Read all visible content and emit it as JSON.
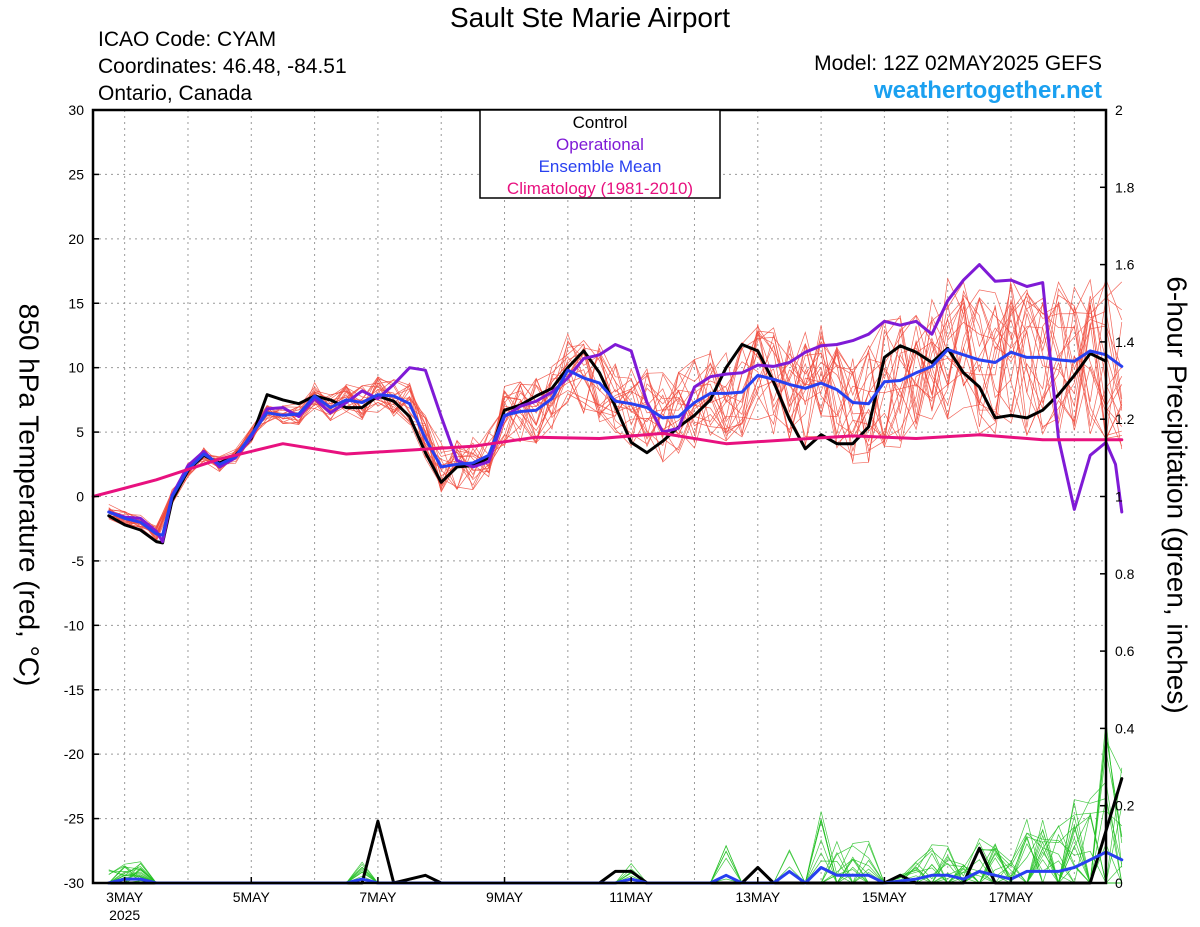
{
  "header": {
    "title": "Sault Ste Marie Airport",
    "icao": "ICAO Code: CYAM",
    "coordinates": "Coordinates: 46.48, -84.51",
    "region": "Ontario, Canada",
    "model": "Model: 12Z 02MAY2025 GEFS",
    "website": "weathertogether.net"
  },
  "chart_data": {
    "type": "line",
    "left_axis_label": "850 hPa Temperature (red, °C)",
    "right_axis_label": "6-hour Precipitation (green, inches)",
    "ylim_left": [
      -30,
      30
    ],
    "ylim_right": [
      0,
      2
    ],
    "left_ticks": [
      "30",
      "25",
      "20",
      "15",
      "10",
      "5",
      "0",
      "-5",
      "-10",
      "-15",
      "-20",
      "-25",
      "-30"
    ],
    "right_ticks": [
      "2",
      "1.8",
      "1.6",
      "1.4",
      "1.2",
      "1",
      "0.8",
      "0.6",
      "0.4",
      "0.2",
      "0"
    ],
    "x_ticks": [
      {
        "day": 3,
        "label": "3MAY",
        "sublabel": "2025"
      },
      {
        "day": 5,
        "label": "5MAY",
        "sublabel": ""
      },
      {
        "day": 7,
        "label": "7MAY",
        "sublabel": ""
      },
      {
        "day": 9,
        "label": "9MAY",
        "sublabel": ""
      },
      {
        "day": 11,
        "label": "11MAY",
        "sublabel": ""
      },
      {
        "day": 13,
        "label": "13MAY",
        "sublabel": ""
      },
      {
        "day": 15,
        "label": "15MAY",
        "sublabel": ""
      },
      {
        "day": 17,
        "label": "17MAY",
        "sublabel": ""
      }
    ],
    "xlim_days": [
      2.5,
      18.5
    ],
    "legend": {
      "placement": "top-center",
      "entries": [
        {
          "label": "Control",
          "color": "#000000"
        },
        {
          "label": "Operational",
          "color": "#7f1ad6"
        },
        {
          "label": "Ensemble Mean",
          "color": "#2840f0"
        },
        {
          "label": "Climatology (1981-2010)",
          "color": "#e8117f"
        }
      ]
    },
    "colors": {
      "members_temp": "#f04a3c",
      "members_precip": "#22c022",
      "control": "#000000",
      "operational": "#7f1ad6",
      "mean": "#2840f0",
      "climatology": "#e8117f"
    },
    "series": [
      {
        "name": "Control",
        "quantity": "temperature",
        "points": [
          [
            2.75,
            -1.5
          ],
          [
            3.0,
            -2.2
          ],
          [
            3.25,
            -2.6
          ],
          [
            3.5,
            -3.5
          ],
          [
            3.6,
            -3.6
          ],
          [
            3.75,
            -0.3
          ],
          [
            4.0,
            2.0
          ],
          [
            4.25,
            3.2
          ],
          [
            4.5,
            2.6
          ],
          [
            4.75,
            3.2
          ],
          [
            5.0,
            4.5
          ],
          [
            5.25,
            7.9
          ],
          [
            5.5,
            7.5
          ],
          [
            5.75,
            7.2
          ],
          [
            6.0,
            7.8
          ],
          [
            6.25,
            7.5
          ],
          [
            6.5,
            6.9
          ],
          [
            6.75,
            6.9
          ],
          [
            7.0,
            7.8
          ],
          [
            7.25,
            7.4
          ],
          [
            7.5,
            6.2
          ],
          [
            7.75,
            3.4
          ],
          [
            8.0,
            1.1
          ],
          [
            8.25,
            2.3
          ],
          [
            8.5,
            2.4
          ],
          [
            8.75,
            3.0
          ],
          [
            9.0,
            6.7
          ],
          [
            9.25,
            7.1
          ],
          [
            9.5,
            7.8
          ],
          [
            9.75,
            8.4
          ],
          [
            10.0,
            10.0
          ],
          [
            10.25,
            11.3
          ],
          [
            10.5,
            9.6
          ],
          [
            10.75,
            7.0
          ],
          [
            11.0,
            4.2
          ],
          [
            11.25,
            3.4
          ],
          [
            11.5,
            4.3
          ],
          [
            11.75,
            5.4
          ],
          [
            12.0,
            6.3
          ],
          [
            12.25,
            7.5
          ],
          [
            12.5,
            10.0
          ],
          [
            12.75,
            11.8
          ],
          [
            13.0,
            11.3
          ],
          [
            13.25,
            8.9
          ],
          [
            13.5,
            6.0
          ],
          [
            13.75,
            3.7
          ],
          [
            14.0,
            4.8
          ],
          [
            14.25,
            4.1
          ],
          [
            14.5,
            4.1
          ],
          [
            14.75,
            5.4
          ],
          [
            15.0,
            10.8
          ],
          [
            15.25,
            11.7
          ],
          [
            15.5,
            11.2
          ],
          [
            15.75,
            10.4
          ],
          [
            16.0,
            11.5
          ],
          [
            16.25,
            9.6
          ],
          [
            16.5,
            8.5
          ],
          [
            16.75,
            6.1
          ],
          [
            17.0,
            6.3
          ],
          [
            17.25,
            6.1
          ],
          [
            17.5,
            6.7
          ],
          [
            17.75,
            7.9
          ],
          [
            18.0,
            9.4
          ],
          [
            18.25,
            11.1
          ],
          [
            18.5,
            10.5
          ]
        ]
      },
      {
        "name": "Operational",
        "quantity": "temperature",
        "points": [
          [
            2.75,
            -1.2
          ],
          [
            3.0,
            -1.6
          ],
          [
            3.25,
            -1.7
          ],
          [
            3.5,
            -2.7
          ],
          [
            3.6,
            -3.5
          ],
          [
            3.75,
            0.1
          ],
          [
            4.0,
            2.4
          ],
          [
            4.25,
            3.5
          ],
          [
            4.5,
            2.3
          ],
          [
            4.75,
            3.0
          ],
          [
            5.0,
            4.6
          ],
          [
            5.25,
            6.8
          ],
          [
            5.5,
            6.9
          ],
          [
            5.75,
            6.2
          ],
          [
            6.0,
            7.6
          ],
          [
            6.25,
            6.5
          ],
          [
            6.5,
            7.3
          ],
          [
            6.75,
            8.2
          ],
          [
            7.0,
            7.6
          ],
          [
            7.25,
            8.7
          ],
          [
            7.5,
            10.0
          ],
          [
            7.75,
            9.8
          ],
          [
            8.0,
            6.2
          ],
          [
            8.25,
            2.8
          ],
          [
            8.5,
            2.3
          ],
          [
            8.75,
            2.7
          ],
          [
            9.0,
            6.2
          ],
          [
            9.25,
            7.0
          ],
          [
            9.5,
            7.4
          ],
          [
            9.75,
            8.1
          ],
          [
            10.0,
            9.2
          ],
          [
            10.25,
            10.7
          ],
          [
            10.5,
            11.0
          ],
          [
            10.75,
            11.8
          ],
          [
            11.0,
            11.3
          ],
          [
            11.25,
            7.3
          ],
          [
            11.5,
            5.0
          ],
          [
            11.75,
            5.3
          ],
          [
            12.0,
            8.5
          ],
          [
            12.25,
            9.3
          ],
          [
            12.5,
            9.5
          ],
          [
            12.75,
            9.6
          ],
          [
            13.0,
            10.2
          ],
          [
            13.25,
            10.1
          ],
          [
            13.5,
            10.4
          ],
          [
            13.75,
            11.2
          ],
          [
            14.0,
            11.7
          ],
          [
            14.25,
            11.8
          ],
          [
            14.5,
            12.1
          ],
          [
            14.75,
            12.6
          ],
          [
            15.0,
            13.6
          ],
          [
            15.25,
            13.3
          ],
          [
            15.5,
            13.6
          ],
          [
            15.75,
            12.6
          ],
          [
            16.0,
            15.2
          ],
          [
            16.25,
            16.8
          ],
          [
            16.5,
            18.0
          ],
          [
            16.75,
            16.7
          ],
          [
            17.0,
            16.8
          ],
          [
            17.25,
            16.3
          ],
          [
            17.5,
            16.6
          ],
          [
            17.75,
            4.5
          ],
          [
            18.0,
            -1.0
          ],
          [
            18.25,
            3.2
          ],
          [
            18.5,
            4.2
          ],
          [
            18.65,
            2.5
          ],
          [
            18.75,
            -1.2
          ]
        ]
      },
      {
        "name": "Ensemble Mean",
        "quantity": "temperature",
        "points": [
          [
            2.75,
            -1.2
          ],
          [
            3.0,
            -1.7
          ],
          [
            3.25,
            -2.0
          ],
          [
            3.5,
            -2.9
          ],
          [
            3.6,
            -3.0
          ],
          [
            3.75,
            0.0
          ],
          [
            4.0,
            2.1
          ],
          [
            4.25,
            3.3
          ],
          [
            4.5,
            2.5
          ],
          [
            4.75,
            3.1
          ],
          [
            5.0,
            4.8
          ],
          [
            5.25,
            6.5
          ],
          [
            5.5,
            6.3
          ],
          [
            5.75,
            6.4
          ],
          [
            6.0,
            7.8
          ],
          [
            6.25,
            6.9
          ],
          [
            6.5,
            7.5
          ],
          [
            6.75,
            7.3
          ],
          [
            7.0,
            7.9
          ],
          [
            7.25,
            7.8
          ],
          [
            7.5,
            7.2
          ],
          [
            7.75,
            4.5
          ],
          [
            8.0,
            2.3
          ],
          [
            8.25,
            2.5
          ],
          [
            8.5,
            2.6
          ],
          [
            8.75,
            3.2
          ],
          [
            9.0,
            6.3
          ],
          [
            9.25,
            6.6
          ],
          [
            9.5,
            6.7
          ],
          [
            9.75,
            7.6
          ],
          [
            10.0,
            9.8
          ],
          [
            10.25,
            9.2
          ],
          [
            10.5,
            8.8
          ],
          [
            10.75,
            7.4
          ],
          [
            11.0,
            7.2
          ],
          [
            11.25,
            6.9
          ],
          [
            11.5,
            6.1
          ],
          [
            11.75,
            6.2
          ],
          [
            12.0,
            7.3
          ],
          [
            12.25,
            8.0
          ],
          [
            12.5,
            8.0
          ],
          [
            12.75,
            8.1
          ],
          [
            13.0,
            9.4
          ],
          [
            13.25,
            9.1
          ],
          [
            13.5,
            8.7
          ],
          [
            13.75,
            8.4
          ],
          [
            14.0,
            8.8
          ],
          [
            14.25,
            8.3
          ],
          [
            14.5,
            7.3
          ],
          [
            14.75,
            7.2
          ],
          [
            15.0,
            8.9
          ],
          [
            15.25,
            9.0
          ],
          [
            15.5,
            9.6
          ],
          [
            15.75,
            10.1
          ],
          [
            16.0,
            11.4
          ],
          [
            16.25,
            11.0
          ],
          [
            16.5,
            10.6
          ],
          [
            16.75,
            10.4
          ],
          [
            17.0,
            11.2
          ],
          [
            17.25,
            10.8
          ],
          [
            17.5,
            10.8
          ],
          [
            17.75,
            10.6
          ],
          [
            18.0,
            10.5
          ],
          [
            18.25,
            11.3
          ],
          [
            18.5,
            11.0
          ],
          [
            18.75,
            10.1
          ]
        ]
      },
      {
        "name": "Climatology (1981-2010)",
        "quantity": "temperature",
        "points": [
          [
            2.5,
            0.0
          ],
          [
            3.5,
            1.3
          ],
          [
            4.5,
            2.9
          ],
          [
            5.5,
            4.1
          ],
          [
            6.5,
            3.3
          ],
          [
            7.5,
            3.6
          ],
          [
            8.5,
            3.9
          ],
          [
            9.5,
            4.6
          ],
          [
            10.5,
            4.5
          ],
          [
            11.5,
            4.9
          ],
          [
            12.5,
            4.1
          ],
          [
            13.5,
            4.4
          ],
          [
            14.5,
            4.7
          ],
          [
            15.5,
            4.5
          ],
          [
            16.5,
            4.8
          ],
          [
            17.5,
            4.4
          ],
          [
            18.75,
            4.4
          ]
        ]
      },
      {
        "name": "Control",
        "quantity": "precipitation",
        "points": [
          [
            2.75,
            0.0
          ],
          [
            6.75,
            0.0
          ],
          [
            7.0,
            0.16
          ],
          [
            7.25,
            0.0
          ],
          [
            7.75,
            0.02
          ],
          [
            8.0,
            0.0
          ],
          [
            10.5,
            0.0
          ],
          [
            10.75,
            0.03
          ],
          [
            11.0,
            0.03
          ],
          [
            11.25,
            0.0
          ],
          [
            12.75,
            0.0
          ],
          [
            13.0,
            0.04
          ],
          [
            13.25,
            0.0
          ],
          [
            15.0,
            0.0
          ],
          [
            15.25,
            0.02
          ],
          [
            15.5,
            0.0
          ],
          [
            16.25,
            0.0
          ],
          [
            16.5,
            0.09
          ],
          [
            16.75,
            0.0
          ],
          [
            18.25,
            0.0
          ],
          [
            18.75,
            0.27
          ]
        ]
      },
      {
        "name": "Ensemble Mean",
        "quantity": "precipitation",
        "points": [
          [
            2.75,
            0.0
          ],
          [
            3.0,
            0.01
          ],
          [
            3.25,
            0.01
          ],
          [
            3.5,
            0.0
          ],
          [
            6.5,
            0.0
          ],
          [
            6.75,
            0.01
          ],
          [
            7.0,
            0.0
          ],
          [
            10.75,
            0.0
          ],
          [
            11.0,
            0.01
          ],
          [
            11.25,
            0.0
          ],
          [
            12.25,
            0.0
          ],
          [
            12.5,
            0.02
          ],
          [
            12.75,
            0.0
          ],
          [
            13.25,
            0.0
          ],
          [
            13.5,
            0.03
          ],
          [
            13.75,
            0.0
          ],
          [
            14.0,
            0.04
          ],
          [
            14.25,
            0.02
          ],
          [
            14.5,
            0.02
          ],
          [
            14.75,
            0.02
          ],
          [
            15.0,
            0.0
          ],
          [
            15.5,
            0.01
          ],
          [
            15.75,
            0.02
          ],
          [
            16.0,
            0.02
          ],
          [
            16.25,
            0.01
          ],
          [
            16.5,
            0.03
          ],
          [
            16.75,
            0.02
          ],
          [
            17.0,
            0.01
          ],
          [
            17.25,
            0.03
          ],
          [
            17.5,
            0.03
          ],
          [
            17.75,
            0.03
          ],
          [
            18.0,
            0.04
          ],
          [
            18.25,
            0.06
          ],
          [
            18.5,
            0.08
          ],
          [
            18.75,
            0.06
          ]
        ]
      }
    ]
  }
}
